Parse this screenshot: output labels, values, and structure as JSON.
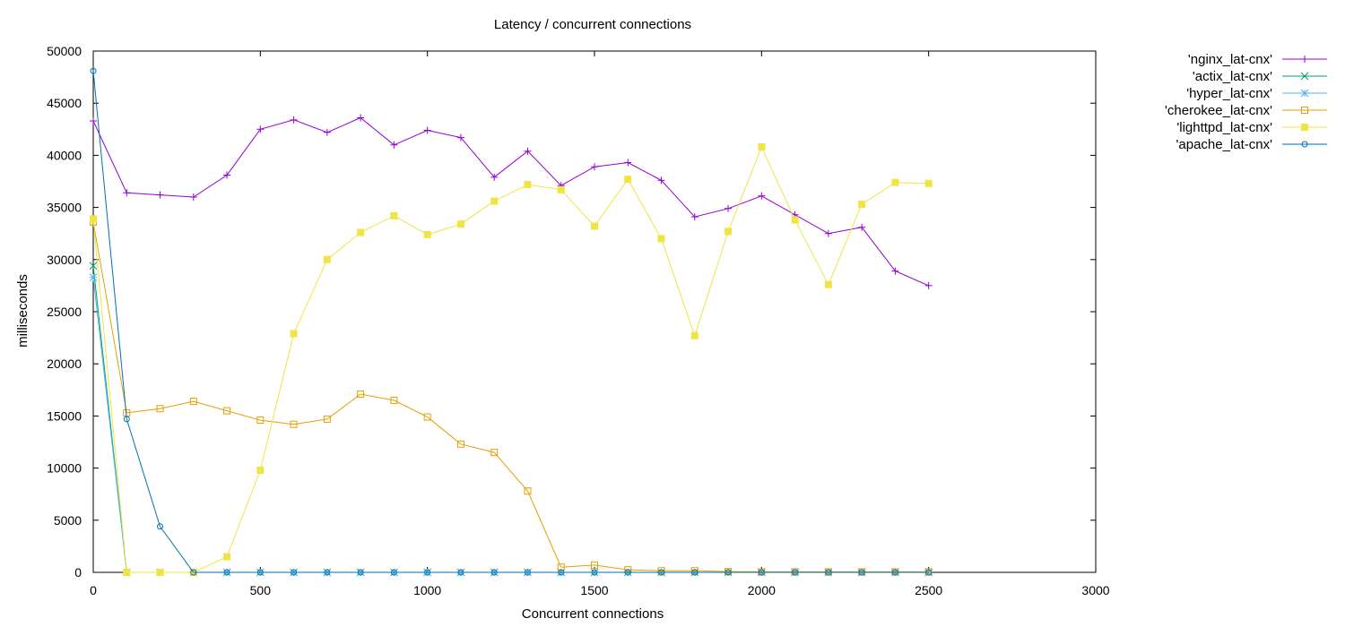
{
  "chart_data": {
    "type": "line",
    "title": "Latency / concurrent connections",
    "xlabel": "Concurrent connections",
    "ylabel": "milliseconds",
    "xlim": [
      0,
      3000
    ],
    "ylim": [
      0,
      50000
    ],
    "xticks": [
      0,
      500,
      1000,
      1500,
      2000,
      2500,
      3000
    ],
    "yticks": [
      0,
      5000,
      10000,
      15000,
      20000,
      25000,
      30000,
      35000,
      40000,
      45000,
      50000
    ],
    "grid": false,
    "legend_position": "outside-top-right",
    "series": [
      {
        "name": "'nginx_lat-cnx'",
        "color": "#9400d3",
        "marker": "plus",
        "x": [
          0,
          100,
          200,
          300,
          400,
          500,
          600,
          700,
          800,
          900,
          1000,
          1100,
          1200,
          1300,
          1400,
          1500,
          1600,
          1700,
          1800,
          1900,
          2000,
          2100,
          2200,
          2300,
          2400,
          2500
        ],
        "values": [
          43300,
          36400,
          36200,
          36000,
          38100,
          42500,
          43400,
          42200,
          43600,
          41000,
          42400,
          41700,
          37900,
          40400,
          37100,
          38900,
          39300,
          37600,
          34100,
          34900,
          36100,
          34300,
          32500,
          33100,
          28900,
          27500
        ]
      },
      {
        "name": "'actix_lat-cnx'",
        "color": "#009e73",
        "marker": "x",
        "x": [
          0,
          100,
          200,
          300,
          400,
          500,
          600,
          700,
          800,
          900,
          1000,
          1100,
          1200,
          1300,
          1400,
          1500,
          1600,
          1700,
          1800,
          1900,
          2000,
          2100,
          2200,
          2300,
          2400,
          2500
        ],
        "values": [
          29400,
          0,
          0,
          0,
          0,
          0,
          0,
          0,
          0,
          0,
          0,
          0,
          0,
          0,
          0,
          0,
          0,
          0,
          0,
          0,
          0,
          0,
          0,
          0,
          0,
          0
        ]
      },
      {
        "name": "'hyper_lat-cnx'",
        "color": "#56b4e9",
        "marker": "star",
        "x": [
          0,
          100,
          200,
          300,
          400,
          500,
          600,
          700,
          800,
          900,
          1000,
          1100,
          1200,
          1300,
          1400,
          1500,
          1600,
          1700,
          1800,
          1900,
          2000,
          2100,
          2200,
          2300,
          2400,
          2500
        ],
        "values": [
          28300,
          0,
          0,
          0,
          0,
          0,
          0,
          0,
          0,
          0,
          0,
          0,
          0,
          0,
          0,
          0,
          0,
          0,
          0,
          0,
          0,
          0,
          0,
          0,
          0,
          0
        ]
      },
      {
        "name": "'cherokee_lat-cnx'",
        "color": "#e69f00",
        "marker": "square-open",
        "x": [
          0,
          100,
          200,
          300,
          400,
          500,
          600,
          700,
          800,
          900,
          1000,
          1100,
          1200,
          1300,
          1400,
          1500,
          1600,
          1700,
          1800,
          1900,
          2000,
          2100,
          2200,
          2300,
          2400,
          2500
        ],
        "values": [
          33600,
          15300,
          15700,
          16400,
          15500,
          14600,
          14200,
          14700,
          17100,
          16500,
          14900,
          12300,
          11500,
          7800,
          500,
          700,
          250,
          150,
          150,
          80,
          50,
          50,
          50,
          50,
          50,
          50
        ]
      },
      {
        "name": "'lighttpd_lat-cnx'",
        "color": "#f0e442",
        "marker": "square-filled",
        "x": [
          0,
          100,
          200,
          300,
          400,
          500,
          600,
          700,
          800,
          900,
          1000,
          1100,
          1200,
          1300,
          1400,
          1500,
          1600,
          1700,
          1800,
          1900,
          2000,
          2100,
          2200,
          2300,
          2400,
          2500
        ],
        "values": [
          33900,
          0,
          0,
          0,
          1500,
          9800,
          22900,
          30000,
          32600,
          34200,
          32400,
          33400,
          35600,
          37200,
          36700,
          33200,
          37700,
          32000,
          22700,
          32700,
          40800,
          33800,
          27600,
          35300,
          37400,
          37300
        ]
      },
      {
        "name": "'apache_lat-cnx'",
        "color": "#0072b2",
        "marker": "circle-open",
        "x": [
          0,
          100,
          200,
          300,
          400,
          500,
          600,
          700,
          800,
          900,
          1000,
          1100,
          1200,
          1300,
          1400,
          1500,
          1600,
          1700,
          1800,
          1900,
          2000,
          2100,
          2200,
          2300,
          2400,
          2500
        ],
        "values": [
          48100,
          14700,
          4400,
          0,
          0,
          0,
          0,
          0,
          0,
          0,
          0,
          0,
          0,
          0,
          0,
          0,
          0,
          0,
          0,
          0,
          0,
          0,
          0,
          0,
          0,
          0
        ]
      }
    ]
  }
}
